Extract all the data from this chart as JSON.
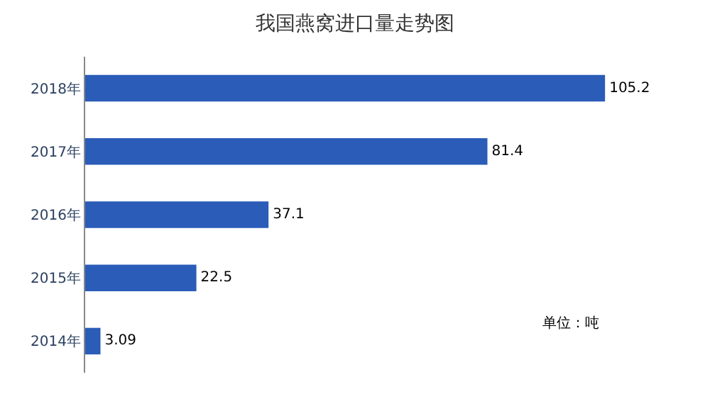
{
  "chart_data": {
    "type": "bar",
    "orientation": "horizontal",
    "title": "我国燕窝进口量走势图",
    "categories": [
      "2018年",
      "2017年",
      "2016年",
      "2015年",
      "2014年"
    ],
    "values": [
      105.2,
      81.4,
      37.1,
      22.5,
      3.09
    ],
    "color": "#2a5cb8",
    "data_labels": true,
    "annotations": [
      "单位：吨"
    ]
  }
}
